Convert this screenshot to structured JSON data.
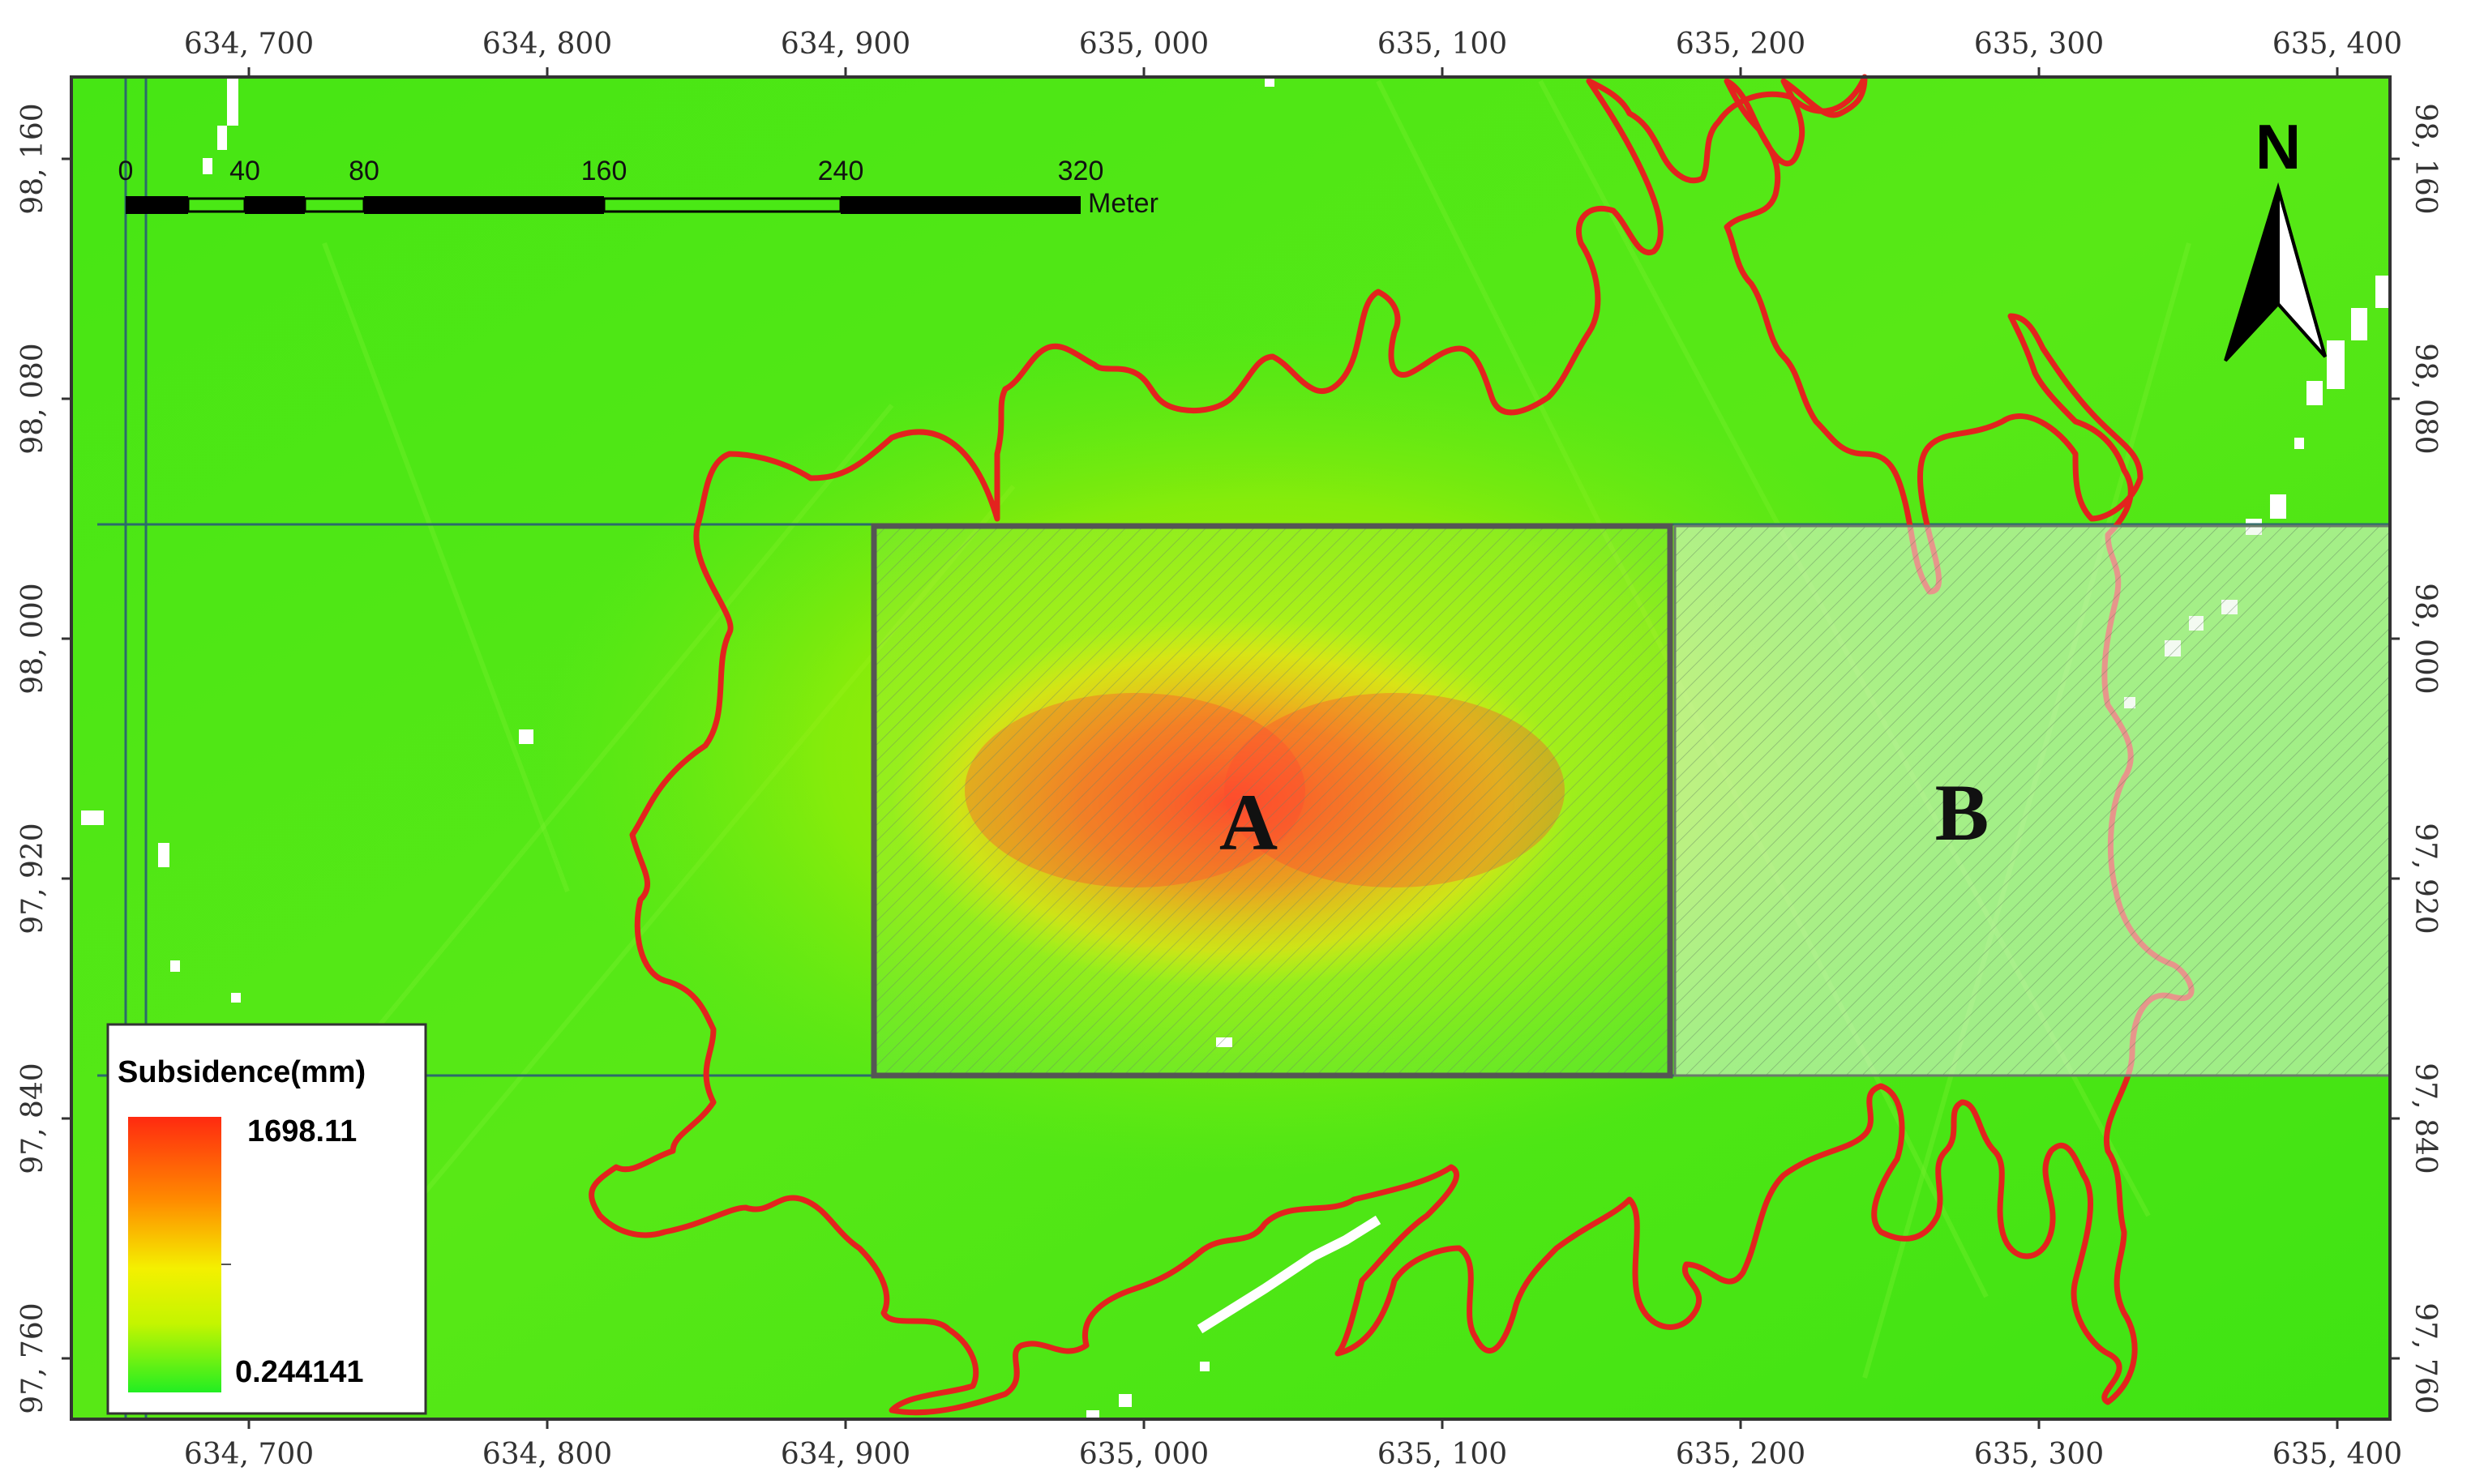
{
  "map": {
    "x_ticks": [
      "634, 700",
      "634, 800",
      "634, 900",
      "635, 000",
      "635, 100",
      "635, 200",
      "635, 300",
      "635, 400"
    ],
    "y_ticks": [
      "98, 160",
      "98, 080",
      "98, 000",
      "97, 920",
      "97, 840",
      "97, 760"
    ],
    "scale_bar": {
      "labels": [
        "0",
        "40",
        "80",
        "160",
        "240",
        "320"
      ],
      "unit": "Meter"
    },
    "north_arrow": {
      "label": "N",
      "icon": "north-arrow-icon"
    },
    "regions": [
      {
        "label": "A"
      },
      {
        "label": "B"
      }
    ],
    "legend": {
      "title": "Subsidence(mm)",
      "max": "1698.11",
      "min": "0.244141",
      "colors": [
        "#ff2a10",
        "#ff8a00",
        "#f4f000",
        "#c4f500",
        "#22ee22"
      ]
    },
    "colors": {
      "background_green": "#4ae815",
      "boundary_red": "#e3231e",
      "grid_line": "#2c6b6b"
    }
  }
}
